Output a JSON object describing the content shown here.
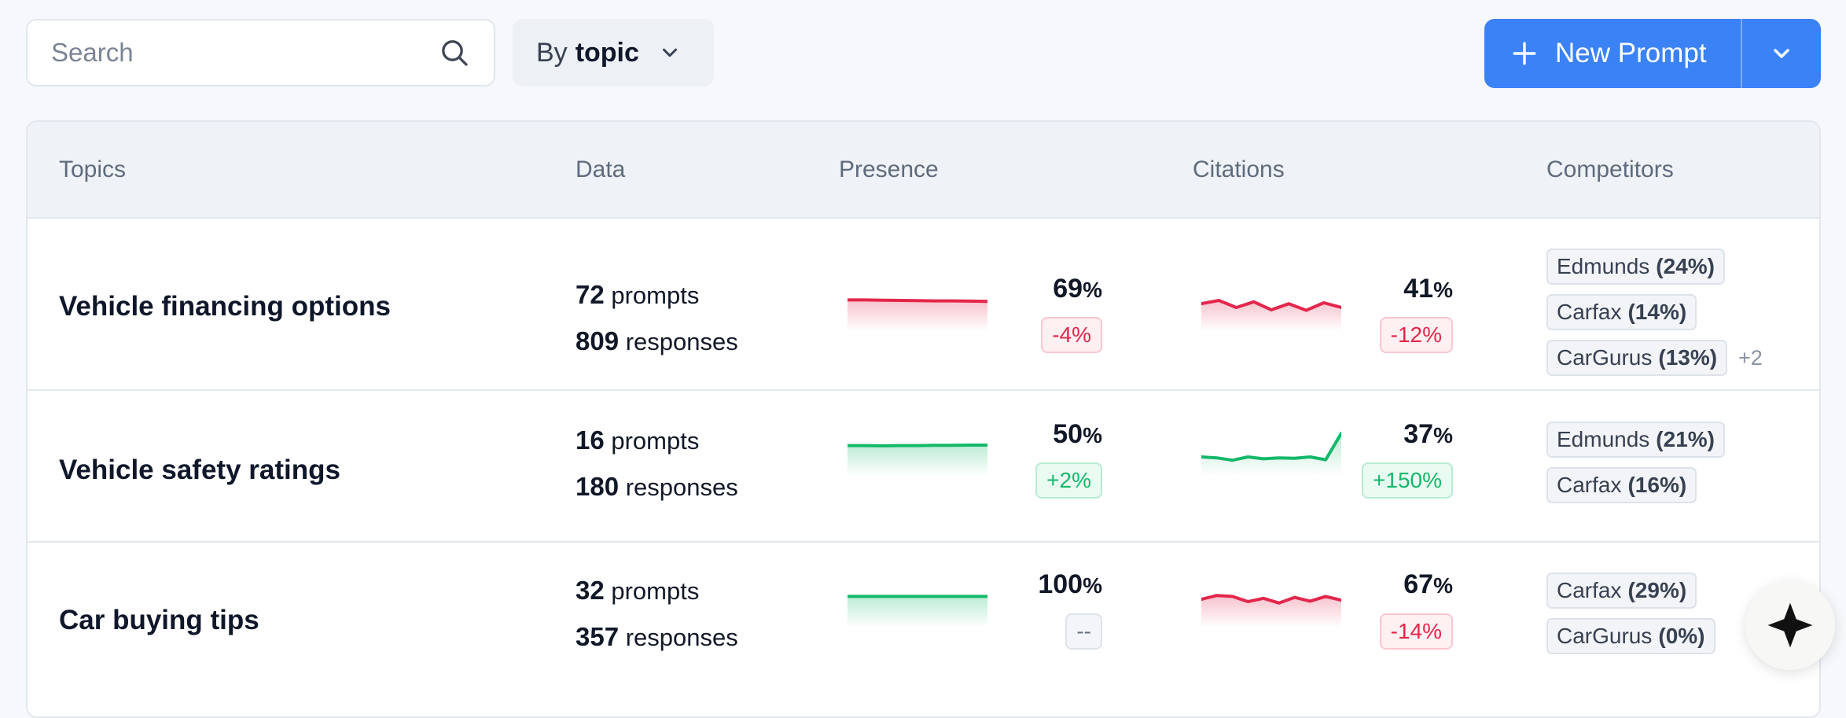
{
  "search": {
    "placeholder": "Search"
  },
  "group_by": {
    "prefix": "By",
    "value": "topic"
  },
  "new_prompt": {
    "label": "New Prompt"
  },
  "table": {
    "headers": [
      "Topics",
      "Data",
      "Presence",
      "Citations",
      "Competitors"
    ],
    "rows": [
      {
        "topic": "Vehicle financing options",
        "prompts": "72",
        "prompts_label": "prompts",
        "responses": "809",
        "responses_label": "responses",
        "presence": {
          "value": "69",
          "unit": "%",
          "delta": "-4%",
          "trend": "neg",
          "series": [
            0.34,
            0.34,
            0.345,
            0.35,
            0.355,
            0.36,
            0.36,
            0.365,
            0.37
          ]
        },
        "citations": {
          "value": "41",
          "unit": "%",
          "delta": "-12%",
          "trend": "neg",
          "series": [
            0.42,
            0.35,
            0.5,
            0.38,
            0.55,
            0.42,
            0.56,
            0.4,
            0.5
          ]
        },
        "competitors": [
          {
            "name": "Edmunds",
            "share": "(24%)"
          },
          {
            "name": "Carfax",
            "share": "(14%)"
          },
          {
            "name": "CarGurus",
            "share": "(13%)"
          }
        ],
        "more": "+2"
      },
      {
        "topic": "Vehicle safety ratings",
        "prompts": "16",
        "prompts_label": "prompts",
        "responses": "180",
        "responses_label": "responses",
        "presence": {
          "value": "50",
          "unit": "%",
          "delta": "+2%",
          "trend": "pos",
          "series": [
            0.36,
            0.36,
            0.365,
            0.36,
            0.36,
            0.355,
            0.355,
            0.35,
            0.35
          ]
        },
        "citations": {
          "value": "37",
          "unit": "%",
          "delta": "+150%",
          "trend": "pos",
          "series": [
            0.6,
            0.62,
            0.67,
            0.6,
            0.64,
            0.62,
            0.63,
            0.6,
            0.66,
            0.1
          ]
        },
        "competitors": [
          {
            "name": "Edmunds",
            "share": "(21%)"
          },
          {
            "name": "Carfax",
            "share": "(16%)"
          }
        ]
      },
      {
        "topic": "Car buying tips",
        "prompts": "32",
        "prompts_label": "prompts",
        "responses": "357",
        "responses_label": "responses",
        "presence": {
          "value": "100",
          "unit": "%",
          "delta": "--",
          "trend": "pos",
          "series": [
            0.34,
            0.34,
            0.34,
            0.34,
            0.34,
            0.34,
            0.34,
            0.34,
            0.34
          ]
        },
        "citations": {
          "value": "67",
          "unit": "%",
          "delta": "-14%",
          "trend": "neg",
          "series": [
            0.4,
            0.32,
            0.34,
            0.45,
            0.38,
            0.48,
            0.36,
            0.44,
            0.34,
            0.42
          ]
        },
        "competitors": [
          {
            "name": "Carfax",
            "share": "(29%)"
          },
          {
            "name": "CarGurus",
            "share": "(0%)"
          }
        ],
        "delta_style": "neu"
      }
    ]
  },
  "colors": {
    "accent": "#3b82f6",
    "negative": "#e3264b",
    "positive": "#14b86a"
  }
}
